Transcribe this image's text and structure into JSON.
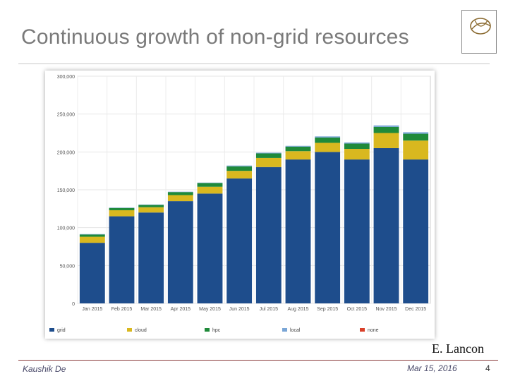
{
  "slide": {
    "title": "Continuous growth of non-grid resources",
    "credit": "E. Lancon",
    "author": "Kaushik De",
    "date": "Mar 15, 2016",
    "page": "4"
  },
  "colors": {
    "grid": "#1e4d8c",
    "cloud": "#d9b81f",
    "hpc": "#1f8a3a",
    "local": "#7aa6d6",
    "none": "#d9402a"
  },
  "chart_data": {
    "type": "bar",
    "stacked": true,
    "title": "",
    "xlabel": "",
    "ylabel": "",
    "ylim": [
      0,
      300000
    ],
    "y_ticks": [
      "0",
      "50,000",
      "100,000",
      "150,000",
      "200,000",
      "250,000",
      "300,000"
    ],
    "categories": [
      "Jan 2015",
      "Feb 2015",
      "Mar 2015",
      "Apr 2015",
      "May 2015",
      "Jun 2015",
      "Jul 2015",
      "Aug 2015",
      "Sep 2015",
      "Oct 2015",
      "Nov 2015",
      "Dec 2015"
    ],
    "series": [
      {
        "name": "grid",
        "values": [
          80000,
          115000,
          120000,
          135000,
          145000,
          165000,
          180000,
          190000,
          200000,
          190000,
          205000,
          190000
        ]
      },
      {
        "name": "cloud",
        "values": [
          8000,
          8000,
          7000,
          8000,
          9000,
          10000,
          12000,
          11000,
          12000,
          14000,
          20000,
          25000
        ]
      },
      {
        "name": "hpc",
        "values": [
          3000,
          3000,
          3000,
          4000,
          5000,
          6000,
          6000,
          6000,
          7000,
          7000,
          8000,
          9000
        ]
      },
      {
        "name": "local",
        "values": [
          500,
          500,
          500,
          500,
          500,
          1000,
          1000,
          1000,
          1500,
          1500,
          2000,
          2000
        ]
      },
      {
        "name": "none",
        "values": [
          0,
          0,
          0,
          0,
          0,
          0,
          0,
          0,
          0,
          0,
          0,
          0
        ]
      }
    ],
    "legend": [
      "grid",
      "cloud",
      "hpc",
      "local",
      "none"
    ],
    "legend_position": "bottom"
  }
}
